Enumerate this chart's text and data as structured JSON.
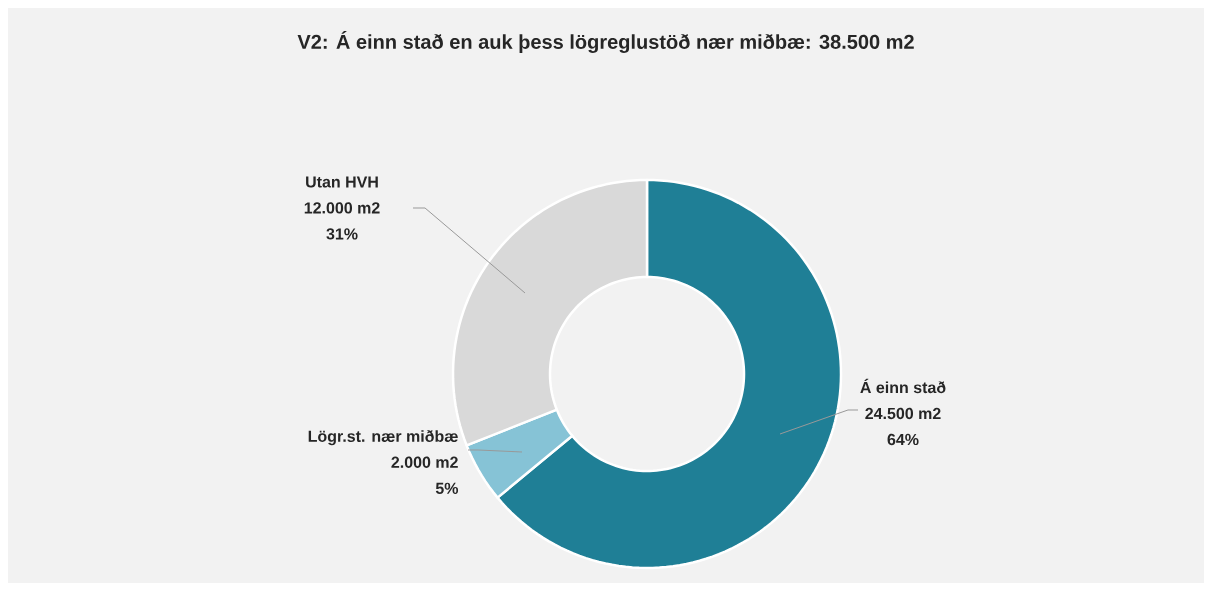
{
  "chart_data": {
    "type": "donut",
    "title": "V2: Á einn stað en auk þess lögreglustöð nær miðbæ: 38.500 m2",
    "categories": [
      "Á einn stað",
      "Lögr.st. nær miðbæ",
      "Utan HVH"
    ],
    "values": [
      64,
      5,
      31
    ],
    "colors": [
      "#1f7f96",
      "#86c3d6",
      "#d9d9d9"
    ],
    "value_labels": [
      "64%",
      "5%",
      "31%"
    ],
    "annotations": [
      "24.500 m2",
      "2.000 m2",
      "12.000 m2"
    ]
  }
}
